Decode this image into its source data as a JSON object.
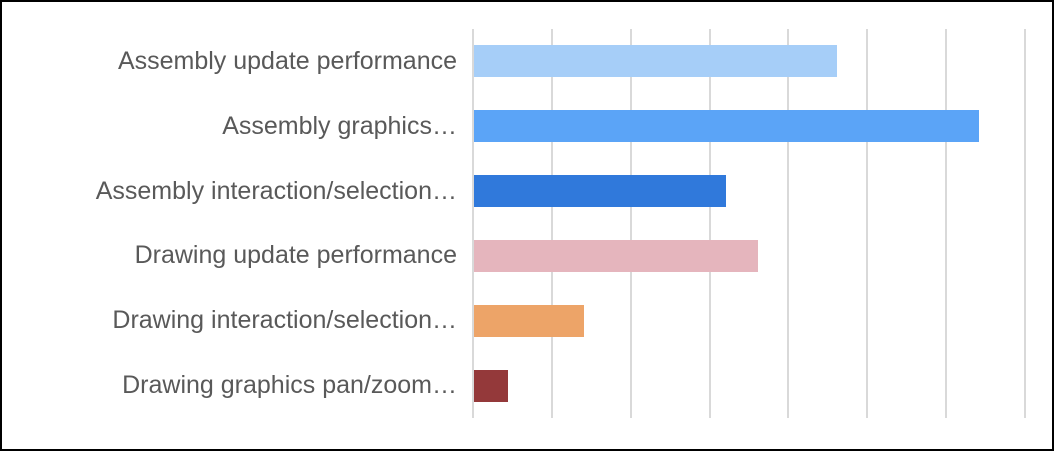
{
  "window": {
    "background": "#FFFFFF",
    "border_color": "#000000"
  },
  "chart_data": {
    "type": "bar",
    "orientation": "horizontal",
    "title": "",
    "xlabel": "",
    "ylabel": "",
    "categories": [
      "Assembly update performance",
      "Assembly graphics…",
      "Assembly interaction/selection…",
      "Drawing update performance",
      "Drawing interaction/selection…",
      "Drawing graphics pan/zoom…"
    ],
    "values": [
      4.6,
      6.4,
      3.2,
      3.6,
      1.4,
      0.43
    ],
    "colors": [
      "#A6CEF8",
      "#5BA4F7",
      "#3079DB",
      "#E5B5BD",
      "#EDA468",
      "#94393A"
    ],
    "xlim": [
      0,
      7
    ],
    "value_axis_tick_labels": "none",
    "legend": "none",
    "grid": "on",
    "gridlines": {
      "count": 8,
      "color": "#D9D9D9"
    },
    "label_color": "#595959"
  }
}
